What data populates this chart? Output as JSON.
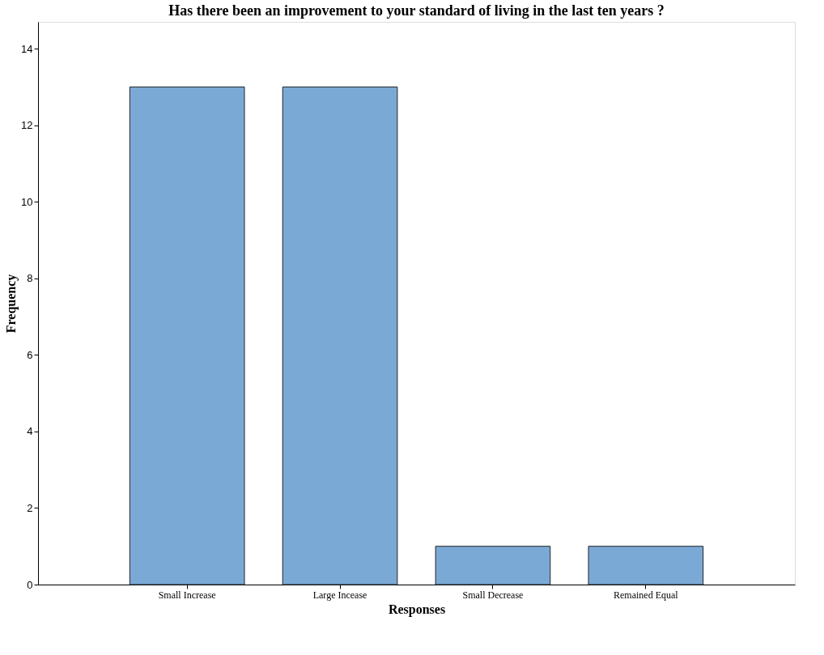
{
  "chart_data": {
    "type": "bar",
    "title": "Has there been an improvement to your standard of living in the last ten years ?",
    "xlabel": "Responses",
    "ylabel": "Frequency",
    "categories": [
      "Small Increase",
      "Large Incease",
      "Small Decrease",
      "Remained Equal"
    ],
    "values": [
      13,
      13,
      1,
      1
    ],
    "color": "#7ba9d6",
    "ylim": [
      0,
      14.7
    ],
    "yticks": [
      0,
      2,
      4,
      6,
      8,
      10,
      12,
      14
    ],
    "grid": false
  }
}
